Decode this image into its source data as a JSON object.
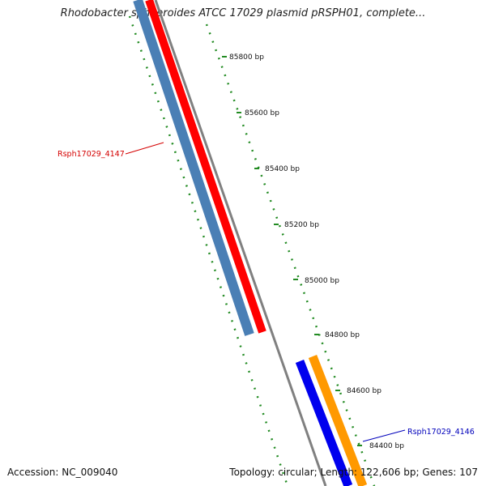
{
  "title": "Rhodobacter sphaeroides ATCC 17029 plasmid pRSPH01, complete...",
  "accession": "Accession: NC_009040",
  "topology_text": "Topology: circular; Length: 122,606 bp; Genes: 107",
  "scale_labels": [
    "85800 bp",
    "85600 bp",
    "85400 bp",
    "85200 bp",
    "85000 bp",
    "84800 bp",
    "84600 bp",
    "84400 bp"
  ],
  "genes": [
    {
      "label": "Rsph17029_4147",
      "strand": "reverse",
      "color": "#d40000"
    },
    {
      "label": "Rsph17029_4146",
      "strand": "forward",
      "color": "#0000bb"
    }
  ],
  "colors": {
    "reverse_cds": "#ff0000",
    "reverse_gene": "#4a7fb5",
    "forward_cds": "#ff9900",
    "forward_gene": "#0000ee",
    "backbone": "#808080",
    "ticks": "#228b22"
  }
}
